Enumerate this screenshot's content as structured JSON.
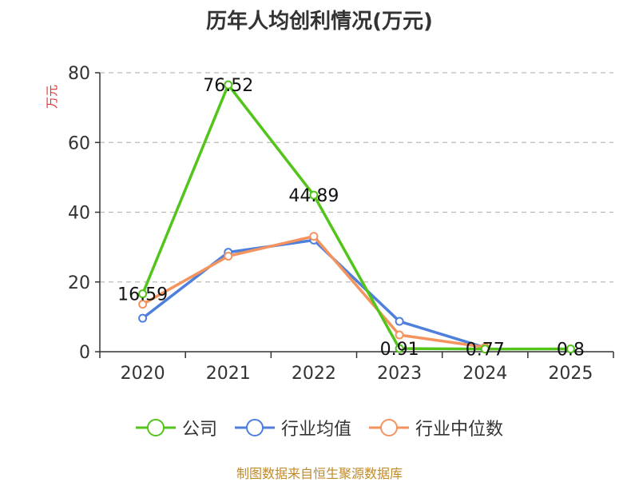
{
  "chart_data": {
    "type": "line",
    "title": "历年人均创利情况(万元)",
    "ylabel": "万元",
    "categories": [
      "2020",
      "2021",
      "2022",
      "2023",
      "2024",
      "2025"
    ],
    "ylim": [
      0,
      80
    ],
    "yticks": [
      0,
      20,
      40,
      60,
      80
    ],
    "grid": true,
    "legend_position": "bottom",
    "series": [
      {
        "name": "公司",
        "color": "#52c41a",
        "values": [
          16.59,
          76.52,
          44.89,
          0.91,
          0.77,
          0.8
        ],
        "data_labels": [
          "16.59",
          "76.52",
          "44.89",
          "0.91",
          "0.77",
          "0.8"
        ]
      },
      {
        "name": "行业均值",
        "color": "#4e7fdc",
        "values": [
          9.6,
          28.5,
          32.0,
          8.7,
          1.2,
          null
        ]
      },
      {
        "name": "行业中位数",
        "color": "#f4935e",
        "values": [
          13.6,
          27.4,
          33.1,
          4.8,
          1.3,
          null
        ]
      }
    ],
    "source": "制图数据来自恒生聚源数据库"
  }
}
